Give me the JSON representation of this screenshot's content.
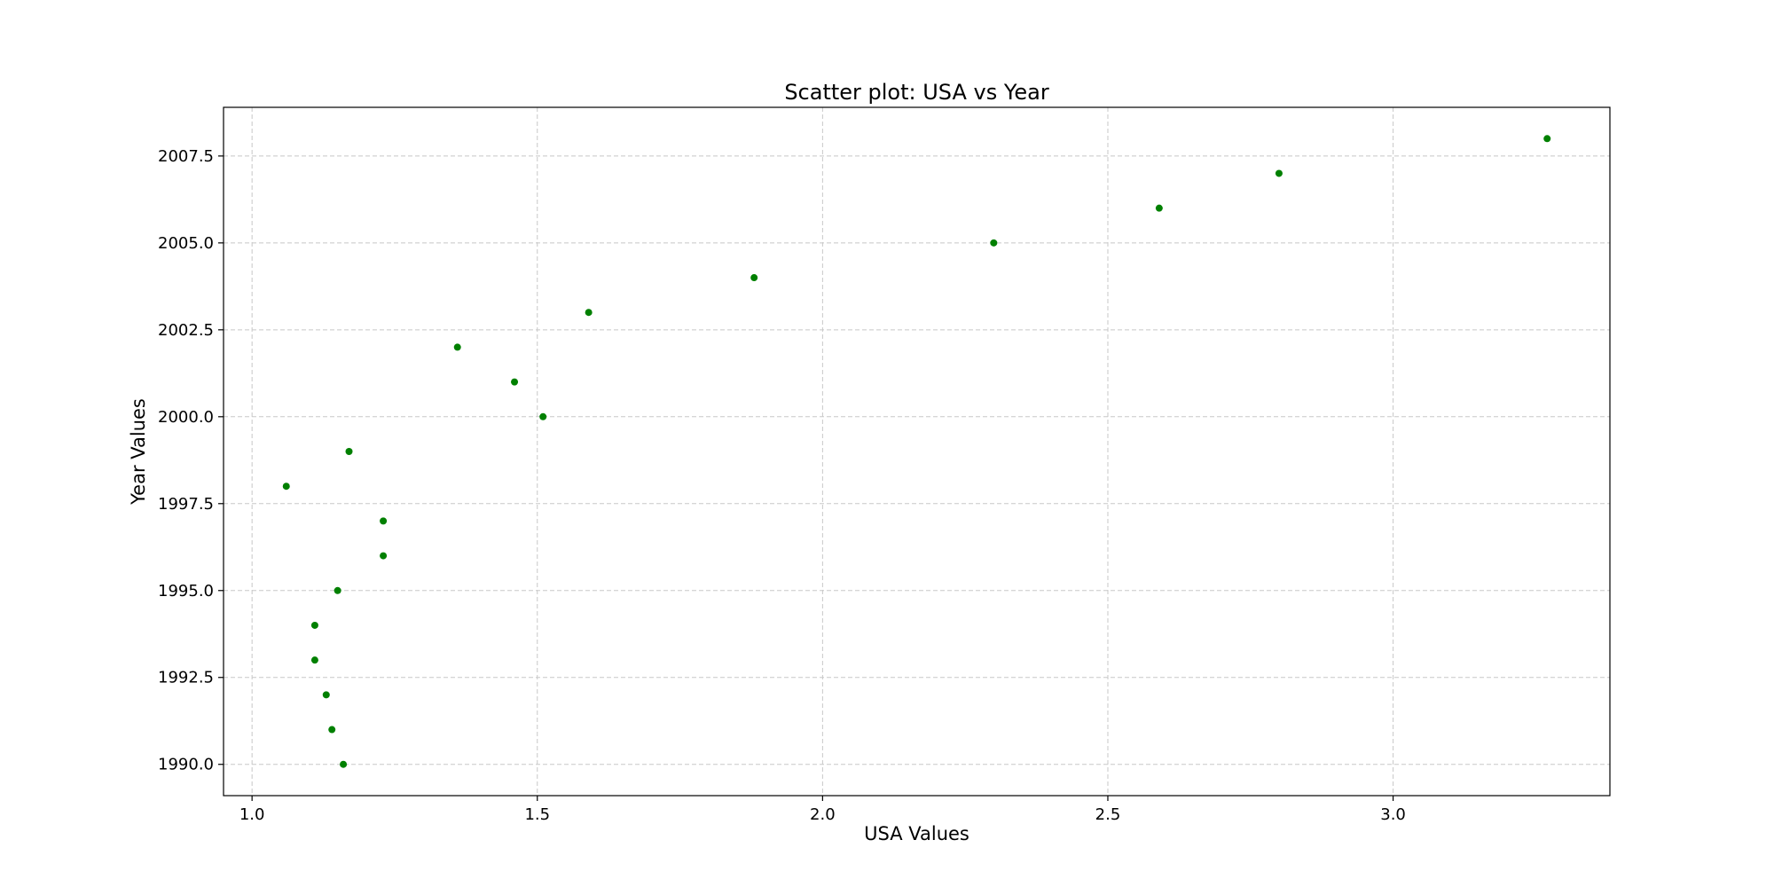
{
  "chart_data": {
    "type": "scatter",
    "title": "Scatter plot: USA vs Year",
    "xlabel": "USA Values",
    "ylabel": "Year Values",
    "xlim": [
      0.95,
      3.38
    ],
    "ylim": [
      1989.1,
      2008.9
    ],
    "xticks": [
      1.0,
      1.5,
      2.0,
      2.5,
      3.0
    ],
    "xtick_labels": [
      "1.0",
      "1.5",
      "2.0",
      "2.5",
      "3.0"
    ],
    "yticks": [
      1990.0,
      1992.5,
      1995.0,
      1997.5,
      2000.0,
      2002.5,
      2005.0,
      2007.5
    ],
    "ytick_labels": [
      "1990.0",
      "1992.5",
      "1995.0",
      "1997.5",
      "2000.0",
      "2002.5",
      "2005.0",
      "2007.5"
    ],
    "grid": true,
    "marker_color": "#008000",
    "points": [
      {
        "x": 1.16,
        "y": 1990
      },
      {
        "x": 1.14,
        "y": 1991
      },
      {
        "x": 1.13,
        "y": 1992
      },
      {
        "x": 1.11,
        "y": 1993
      },
      {
        "x": 1.11,
        "y": 1994
      },
      {
        "x": 1.15,
        "y": 1995
      },
      {
        "x": 1.23,
        "y": 1996
      },
      {
        "x": 1.23,
        "y": 1997
      },
      {
        "x": 1.06,
        "y": 1998
      },
      {
        "x": 1.17,
        "y": 1999
      },
      {
        "x": 1.51,
        "y": 2000
      },
      {
        "x": 1.46,
        "y": 2001
      },
      {
        "x": 1.36,
        "y": 2002
      },
      {
        "x": 1.59,
        "y": 2003
      },
      {
        "x": 1.88,
        "y": 2004
      },
      {
        "x": 2.3,
        "y": 2005
      },
      {
        "x": 2.59,
        "y": 2006
      },
      {
        "x": 2.8,
        "y": 2007
      },
      {
        "x": 3.27,
        "y": 2008
      }
    ]
  }
}
